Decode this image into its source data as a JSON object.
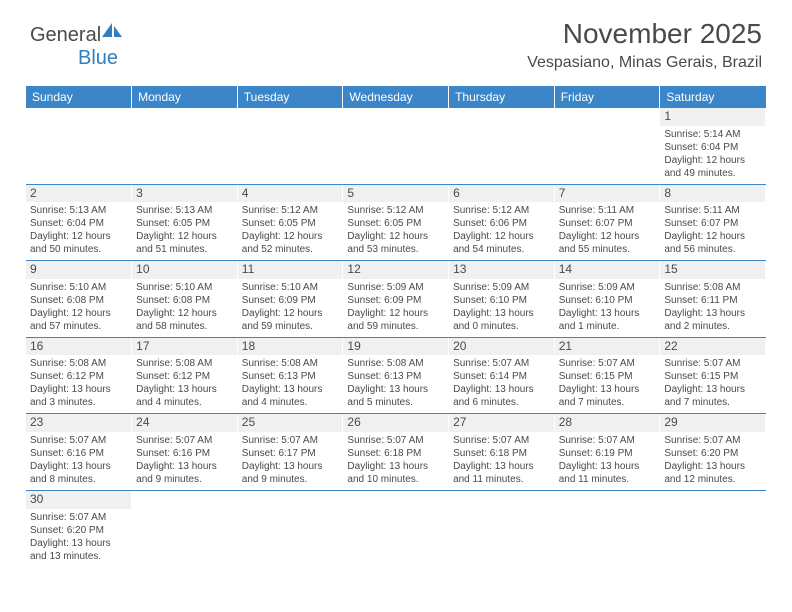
{
  "logo": {
    "text1": "General",
    "text2": "Blue"
  },
  "title": "November 2025",
  "location": "Vespasiano, Minas Gerais, Brazil",
  "colors": {
    "header_bg": "#3a86c8",
    "header_fg": "#ffffff",
    "text": "#4a4a4a",
    "daynum_bg": "#f0f0f0",
    "border": "#3a86c8"
  },
  "dayHeaders": [
    "Sunday",
    "Monday",
    "Tuesday",
    "Wednesday",
    "Thursday",
    "Friday",
    "Saturday"
  ],
  "weeks": [
    [
      null,
      null,
      null,
      null,
      null,
      null,
      {
        "n": 1,
        "sr": "5:14 AM",
        "ss": "6:04 PM",
        "dl": "12 hours and 49 minutes."
      }
    ],
    [
      {
        "n": 2,
        "sr": "5:13 AM",
        "ss": "6:04 PM",
        "dl": "12 hours and 50 minutes."
      },
      {
        "n": 3,
        "sr": "5:13 AM",
        "ss": "6:05 PM",
        "dl": "12 hours and 51 minutes."
      },
      {
        "n": 4,
        "sr": "5:12 AM",
        "ss": "6:05 PM",
        "dl": "12 hours and 52 minutes."
      },
      {
        "n": 5,
        "sr": "5:12 AM",
        "ss": "6:05 PM",
        "dl": "12 hours and 53 minutes."
      },
      {
        "n": 6,
        "sr": "5:12 AM",
        "ss": "6:06 PM",
        "dl": "12 hours and 54 minutes."
      },
      {
        "n": 7,
        "sr": "5:11 AM",
        "ss": "6:07 PM",
        "dl": "12 hours and 55 minutes."
      },
      {
        "n": 8,
        "sr": "5:11 AM",
        "ss": "6:07 PM",
        "dl": "12 hours and 56 minutes."
      }
    ],
    [
      {
        "n": 9,
        "sr": "5:10 AM",
        "ss": "6:08 PM",
        "dl": "12 hours and 57 minutes."
      },
      {
        "n": 10,
        "sr": "5:10 AM",
        "ss": "6:08 PM",
        "dl": "12 hours and 58 minutes."
      },
      {
        "n": 11,
        "sr": "5:10 AM",
        "ss": "6:09 PM",
        "dl": "12 hours and 59 minutes."
      },
      {
        "n": 12,
        "sr": "5:09 AM",
        "ss": "6:09 PM",
        "dl": "12 hours and 59 minutes."
      },
      {
        "n": 13,
        "sr": "5:09 AM",
        "ss": "6:10 PM",
        "dl": "13 hours and 0 minutes."
      },
      {
        "n": 14,
        "sr": "5:09 AM",
        "ss": "6:10 PM",
        "dl": "13 hours and 1 minute."
      },
      {
        "n": 15,
        "sr": "5:08 AM",
        "ss": "6:11 PM",
        "dl": "13 hours and 2 minutes."
      }
    ],
    [
      {
        "n": 16,
        "sr": "5:08 AM",
        "ss": "6:12 PM",
        "dl": "13 hours and 3 minutes."
      },
      {
        "n": 17,
        "sr": "5:08 AM",
        "ss": "6:12 PM",
        "dl": "13 hours and 4 minutes."
      },
      {
        "n": 18,
        "sr": "5:08 AM",
        "ss": "6:13 PM",
        "dl": "13 hours and 4 minutes."
      },
      {
        "n": 19,
        "sr": "5:08 AM",
        "ss": "6:13 PM",
        "dl": "13 hours and 5 minutes."
      },
      {
        "n": 20,
        "sr": "5:07 AM",
        "ss": "6:14 PM",
        "dl": "13 hours and 6 minutes."
      },
      {
        "n": 21,
        "sr": "5:07 AM",
        "ss": "6:15 PM",
        "dl": "13 hours and 7 minutes."
      },
      {
        "n": 22,
        "sr": "5:07 AM",
        "ss": "6:15 PM",
        "dl": "13 hours and 7 minutes."
      }
    ],
    [
      {
        "n": 23,
        "sr": "5:07 AM",
        "ss": "6:16 PM",
        "dl": "13 hours and 8 minutes."
      },
      {
        "n": 24,
        "sr": "5:07 AM",
        "ss": "6:16 PM",
        "dl": "13 hours and 9 minutes."
      },
      {
        "n": 25,
        "sr": "5:07 AM",
        "ss": "6:17 PM",
        "dl": "13 hours and 9 minutes."
      },
      {
        "n": 26,
        "sr": "5:07 AM",
        "ss": "6:18 PM",
        "dl": "13 hours and 10 minutes."
      },
      {
        "n": 27,
        "sr": "5:07 AM",
        "ss": "6:18 PM",
        "dl": "13 hours and 11 minutes."
      },
      {
        "n": 28,
        "sr": "5:07 AM",
        "ss": "6:19 PM",
        "dl": "13 hours and 11 minutes."
      },
      {
        "n": 29,
        "sr": "5:07 AM",
        "ss": "6:20 PM",
        "dl": "13 hours and 12 minutes."
      }
    ],
    [
      {
        "n": 30,
        "sr": "5:07 AM",
        "ss": "6:20 PM",
        "dl": "13 hours and 13 minutes."
      },
      null,
      null,
      null,
      null,
      null,
      null
    ]
  ],
  "labels": {
    "sunrise": "Sunrise:",
    "sunset": "Sunset:",
    "daylight": "Daylight:"
  }
}
